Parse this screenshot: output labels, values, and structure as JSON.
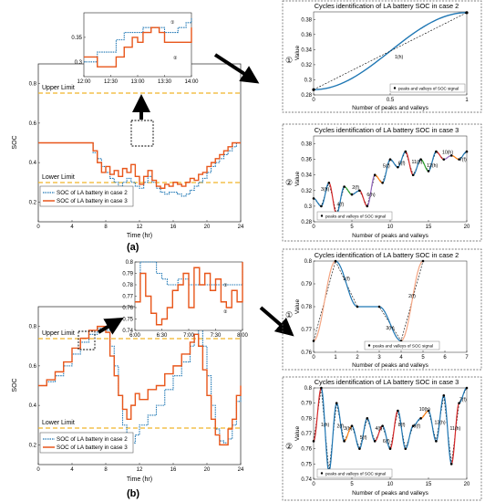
{
  "panels": [
    {
      "id": "a",
      "label": "(a)",
      "main": {
        "ylabel": "SOC",
        "xlabel": "Time (hr)",
        "x_ticks": [
          "0",
          "4",
          "8",
          "12",
          "16",
          "20",
          "24"
        ],
        "y_ticks": [
          "0.2",
          "0.4",
          "0.6",
          "0.8"
        ],
        "upper_limit": "Upper Limit",
        "lower_limit": "Lower Limit",
        "legend": [
          "SOC of LA battery in case 2",
          "SOC of LA battery in case 3"
        ]
      },
      "inset": {
        "x_ticks": [
          "12:00",
          "12:30",
          "13:00",
          "13:30",
          "14:00"
        ],
        "y_ticks": [
          "0.3",
          "0.35"
        ],
        "markers": [
          "①",
          "②"
        ]
      },
      "subplots": [
        {
          "marker": "①",
          "title": "Cycles identification of LA battery SOC in case 2",
          "xlabel": "Number of peaks and valleys",
          "ylabel": "Value",
          "x_ticks": [
            "0",
            "0.5",
            "1"
          ],
          "y_ticks": [
            "0.28",
            "0.3",
            "0.32",
            "0.34",
            "0.36",
            "0.38"
          ],
          "legend": "peaks and valleys of SOC signal",
          "annotations": [
            "1(h)"
          ]
        },
        {
          "marker": "②",
          "title": "Cycles identification of LA battery SOC in case 3",
          "xlabel": "Number of peaks and valleys",
          "ylabel": "Value",
          "x_ticks": [
            "0",
            "5",
            "10",
            "15",
            "20"
          ],
          "y_ticks": [
            "0.28",
            "0.3",
            "0.32",
            "0.34",
            "0.36",
            "0.38"
          ],
          "legend": "peaks and valleys of SOC signal",
          "annotations": [
            "3(h)",
            "4(f)",
            "2(f)",
            "6(h)",
            "5(f)",
            "6(f)",
            "11(h)",
            "12(h)",
            "10(h)",
            "7(f)"
          ]
        }
      ]
    },
    {
      "id": "b",
      "label": "(b)",
      "main": {
        "ylabel": "SOC",
        "xlabel": "Time (hr)",
        "x_ticks": [
          "0",
          "4",
          "8",
          "12",
          "16",
          "20",
          "24"
        ],
        "y_ticks": [
          "0.2",
          "0.4",
          "0.6",
          "0.8"
        ],
        "upper_limit": "Upper Limit",
        "lower_limit": "Lower Limit",
        "legend": [
          "SOC of LA battery in case 2",
          "SOC of LA battery in case 3"
        ]
      },
      "inset": {
        "x_ticks": [
          "6:00",
          "6:30",
          "7:00",
          "7:30",
          "8:00"
        ],
        "y_ticks": [
          "0.74",
          "0.75",
          "0.76",
          "0.77",
          "0.78",
          "0.79",
          "0.8"
        ],
        "markers": [
          "①",
          "②"
        ]
      },
      "subplots": [
        {
          "marker": "①",
          "title": "Cycles identification of LA battery SOC in case 2",
          "xlabel": "Number of peaks and valleys",
          "ylabel": "Value",
          "x_ticks": [
            "0",
            "1",
            "2",
            "3",
            "4",
            "5",
            "6",
            "7"
          ],
          "y_ticks": [
            "0.76",
            "0.77",
            "0.78",
            "0.79",
            "0.8"
          ],
          "legend": "peaks and valleys of SOC signal",
          "annotations": [
            "1(f)",
            "3(h)",
            "2(f)"
          ]
        },
        {
          "marker": "②",
          "title": "Cycles identification of LA battery SOC in case 3",
          "xlabel": "Number of peaks and valleys",
          "ylabel": "Value",
          "x_ticks": [
            "0",
            "5",
            "10",
            "15",
            "20"
          ],
          "y_ticks": [
            "0.74",
            "0.75",
            "0.76",
            "0.77",
            "0.78",
            "0.79",
            "0.8"
          ],
          "legend": "peaks and valleys of SOC signal",
          "annotations": [
            "1(h)",
            "2(f)",
            "3(h)",
            "5(f)",
            "4(f)",
            "6(f)",
            "8(f)",
            "9(f)",
            "10(h)",
            "12(h)",
            "11(h)",
            "7(f)"
          ]
        }
      ]
    }
  ],
  "chart_data": [
    {
      "type": "line",
      "panel": "a",
      "xlabel": "Time (hr)",
      "ylabel": "SOC",
      "xlim": [
        0,
        24
      ],
      "ylim": [
        0.1,
        0.9
      ],
      "reference_lines": [
        {
          "name": "Upper Limit",
          "y": 0.8
        },
        {
          "name": "Lower Limit",
          "y": 0.2
        }
      ],
      "x": [
        0,
        6,
        6.5,
        7,
        7.5,
        8,
        8.5,
        9,
        9.5,
        10,
        10.5,
        11,
        11.5,
        12,
        12.5,
        13,
        13.5,
        14,
        14.5,
        15,
        15.5,
        16,
        16.5,
        17,
        17.5,
        18,
        18.5,
        19,
        19.5,
        20,
        20.5,
        21,
        21.5,
        22,
        22.5,
        23,
        23.5,
        24
      ],
      "series": [
        {
          "name": "SOC of LA battery in case 2",
          "values": [
            0.5,
            0.5,
            0.45,
            0.42,
            0.38,
            0.35,
            0.32,
            0.3,
            0.28,
            0.3,
            0.32,
            0.3,
            0.28,
            0.27,
            0.3,
            0.33,
            0.3,
            0.27,
            0.25,
            0.24,
            0.25,
            0.25,
            0.24,
            0.23,
            0.24,
            0.26,
            0.28,
            0.3,
            0.32,
            0.35,
            0.38,
            0.4,
            0.42,
            0.44,
            0.46,
            0.48,
            0.5,
            0.5
          ]
        },
        {
          "name": "SOC of LA battery in case 3",
          "values": [
            0.5,
            0.5,
            0.46,
            0.4,
            0.35,
            0.38,
            0.34,
            0.36,
            0.33,
            0.37,
            0.35,
            0.39,
            0.33,
            0.29,
            0.33,
            0.36,
            0.31,
            0.28,
            0.27,
            0.29,
            0.28,
            0.3,
            0.29,
            0.28,
            0.3,
            0.32,
            0.31,
            0.34,
            0.35,
            0.38,
            0.4,
            0.42,
            0.44,
            0.46,
            0.48,
            0.5,
            0.5,
            0.5
          ]
        }
      ]
    },
    {
      "type": "line",
      "panel": "a-inset",
      "xlim": [
        12,
        14
      ],
      "ylim": [
        0.27,
        0.4
      ],
      "x": [
        12.0,
        12.1,
        12.25,
        12.5,
        12.6,
        12.75,
        12.9,
        13.0,
        13.1,
        13.25,
        13.4,
        13.5,
        13.6,
        13.75,
        13.9,
        14.0
      ],
      "series": [
        {
          "name": "SOC of LA battery in case 2",
          "values": [
            0.3,
            0.3,
            0.32,
            0.32,
            0.345,
            0.36,
            0.36,
            0.36,
            0.37,
            0.37,
            0.37,
            0.36,
            0.36,
            0.37,
            0.38,
            0.39
          ]
        },
        {
          "name": "SOC of LA battery in case 3",
          "values": [
            0.31,
            0.31,
            0.29,
            0.29,
            0.31,
            0.33,
            0.35,
            0.34,
            0.36,
            0.37,
            0.36,
            0.34,
            0.34,
            0.34,
            0.34,
            0.37
          ]
        }
      ]
    },
    {
      "type": "line",
      "panel": "a-1",
      "title": "Cycles identification of LA battery SOC in case 2",
      "xlabel": "Number of peaks and valleys",
      "ylabel": "Value",
      "xlim": [
        0,
        1
      ],
      "ylim": [
        0.28,
        0.39
      ],
      "points": [
        [
          0,
          0.287
        ],
        [
          1,
          0.389
        ]
      ],
      "cycles": [
        {
          "label": "1(h)",
          "from": 0,
          "to": 1
        }
      ]
    },
    {
      "type": "line",
      "panel": "a-2",
      "title": "Cycles identification of LA battery SOC in case 3",
      "xlabel": "Number of peaks and valleys",
      "ylabel": "Value",
      "xlim": [
        0,
        20
      ],
      "ylim": [
        0.28,
        0.39
      ],
      "x": [
        0,
        1,
        2,
        3,
        4,
        5,
        6,
        7,
        8,
        9,
        10,
        11,
        12,
        13,
        14,
        15,
        16,
        17,
        18,
        19,
        20
      ],
      "values": [
        0.31,
        0.3,
        0.33,
        0.29,
        0.325,
        0.315,
        0.32,
        0.3,
        0.34,
        0.33,
        0.36,
        0.35,
        0.37,
        0.34,
        0.36,
        0.345,
        0.37,
        0.36,
        0.365,
        0.36,
        0.37
      ]
    },
    {
      "type": "line",
      "panel": "b",
      "xlabel": "Time (hr)",
      "ylabel": "SOC",
      "xlim": [
        0,
        24
      ],
      "ylim": [
        0.1,
        0.9
      ],
      "reference_lines": [
        {
          "name": "Upper Limit",
          "y": 0.8
        },
        {
          "name": "Lower Limit",
          "y": 0.2
        }
      ],
      "x": [
        0,
        1,
        2,
        3,
        4,
        5,
        6,
        7,
        8,
        8.5,
        9,
        9.5,
        10,
        10.5,
        11,
        11.5,
        12,
        13,
        14,
        15,
        16,
        17,
        18,
        18.5,
        19,
        19.5,
        20,
        20.5,
        21,
        21.5,
        22,
        22.5,
        23,
        23.5,
        24
      ],
      "series": [
        {
          "name": "SOC of LA battery in case 2",
          "values": [
            0.5,
            0.52,
            0.55,
            0.6,
            0.66,
            0.72,
            0.76,
            0.79,
            0.78,
            0.7,
            0.6,
            0.45,
            0.3,
            0.2,
            0.21,
            0.25,
            0.3,
            0.35,
            0.4,
            0.48,
            0.55,
            0.62,
            0.7,
            0.76,
            0.8,
            0.7,
            0.55,
            0.4,
            0.28,
            0.22,
            0.21,
            0.23,
            0.3,
            0.42,
            0.48
          ]
        },
        {
          "name": "SOC of LA battery in case 3",
          "values": [
            0.5,
            0.53,
            0.57,
            0.62,
            0.69,
            0.74,
            0.78,
            0.8,
            0.77,
            0.65,
            0.55,
            0.45,
            0.38,
            0.33,
            0.4,
            0.46,
            0.43,
            0.48,
            0.5,
            0.56,
            0.6,
            0.66,
            0.72,
            0.76,
            0.7,
            0.58,
            0.45,
            0.33,
            0.25,
            0.2,
            0.2,
            0.28,
            0.33,
            0.45,
            0.5
          ]
        }
      ]
    },
    {
      "type": "line",
      "panel": "b-inset",
      "xlim": [
        6,
        8
      ],
      "ylim": [
        0.74,
        0.8
      ],
      "x": [
        6.0,
        6.1,
        6.2,
        6.3,
        6.4,
        6.5,
        6.6,
        6.7,
        6.8,
        6.9,
        7.0,
        7.1,
        7.2,
        7.3,
        7.4,
        7.5,
        7.6,
        7.7,
        7.8,
        7.9,
        8.0
      ],
      "series": [
        {
          "name": "SOC of LA battery in case 2",
          "values": [
            0.765,
            0.8,
            0.8,
            0.8,
            0.79,
            0.785,
            0.78,
            0.78,
            0.785,
            0.785,
            0.78,
            0.78,
            0.78,
            0.78,
            0.78,
            0.78,
            0.78,
            0.78,
            0.78,
            0.78,
            0.8
          ]
        },
        {
          "name": "SOC of LA battery in case 3",
          "values": [
            0.765,
            0.79,
            0.77,
            0.755,
            0.745,
            0.75,
            0.76,
            0.775,
            0.78,
            0.79,
            0.76,
            0.795,
            0.78,
            0.79,
            0.775,
            0.785,
            0.765,
            0.76,
            0.775,
            0.765,
            0.8
          ]
        }
      ]
    },
    {
      "type": "line",
      "panel": "b-1",
      "title": "Cycles identification of LA battery SOC in case 2",
      "xlabel": "Number of peaks and valleys",
      "ylabel": "Value",
      "xlim": [
        0,
        7
      ],
      "ylim": [
        0.76,
        0.8
      ],
      "points": [
        [
          0,
          0.765
        ],
        [
          1,
          0.8
        ],
        [
          2,
          0.78
        ],
        [
          3,
          0.78
        ],
        [
          4,
          0.765
        ],
        [
          5,
          0.8
        ]
      ],
      "cycles": [
        {
          "label": "1(f)"
        },
        {
          "label": "2(f)"
        },
        {
          "label": "3(h)"
        }
      ]
    },
    {
      "type": "line",
      "panel": "b-2",
      "title": "Cycles identification of LA battery SOC in case 3",
      "xlabel": "Number of peaks and valleys",
      "ylabel": "Value",
      "xlim": [
        0,
        20
      ],
      "ylim": [
        0.74,
        0.8
      ],
      "x": [
        0,
        1,
        2,
        3,
        4,
        5,
        6,
        7,
        8,
        9,
        10,
        11,
        12,
        13,
        14,
        15,
        16,
        17,
        18,
        19,
        20
      ],
      "values": [
        0.765,
        0.8,
        0.745,
        0.79,
        0.765,
        0.775,
        0.76,
        0.78,
        0.765,
        0.775,
        0.76,
        0.785,
        0.76,
        0.775,
        0.78,
        0.785,
        0.765,
        0.795,
        0.75,
        0.79,
        0.8
      ]
    }
  ]
}
